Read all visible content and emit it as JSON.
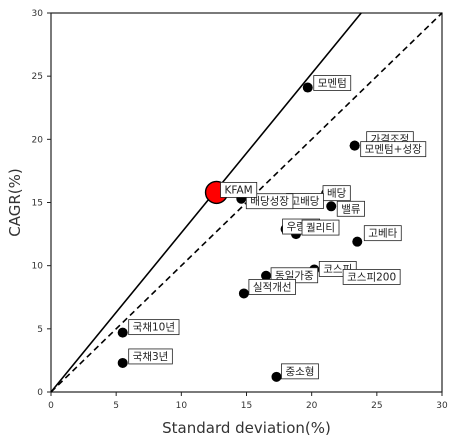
{
  "chart_data": {
    "type": "scatter",
    "title": "",
    "xlabel": "Standard deviation(%)",
    "ylabel": "CAGR(%)",
    "xlim": [
      0,
      30
    ],
    "ylim": [
      0,
      30
    ],
    "xticks": [
      0,
      5,
      10,
      15,
      20,
      25,
      30
    ],
    "yticks": [
      0,
      5,
      10,
      15,
      20,
      25,
      30
    ],
    "grid": false,
    "lines": [
      {
        "style": "solid",
        "x": [
          0,
          23.8
        ],
        "y": [
          0,
          30
        ]
      },
      {
        "style": "dashed",
        "x": [
          0,
          30
        ],
        "y": [
          0,
          30
        ]
      }
    ],
    "points": [
      {
        "label": "KFAM",
        "x": 12.7,
        "y": 15.8,
        "color": "#ff0000",
        "highlight": true
      },
      {
        "label": "모멘텀",
        "x": 19.7,
        "y": 24.1,
        "color": "#000000"
      },
      {
        "label": "가격조정",
        "x": 23.3,
        "y": 19.5,
        "color": "#000000"
      },
      {
        "label": "모멘텀+성장",
        "x": 23.3,
        "y": 19.5,
        "color": "#000000"
      },
      {
        "label": "배당성장",
        "x": 14.6,
        "y": 15.3,
        "color": "#000000"
      },
      {
        "label": "고배당",
        "x": 17.3,
        "y": 15.0,
        "color": "#000000"
      },
      {
        "label": "배당",
        "x": 21.1,
        "y": 15.7,
        "color": "#000000"
      },
      {
        "label": "밸류",
        "x": 21.5,
        "y": 14.7,
        "color": "#000000"
      },
      {
        "label": "우량주",
        "x": 18.0,
        "y": 12.9,
        "color": "#000000"
      },
      {
        "label": "퀄리티",
        "x": 18.8,
        "y": 12.5,
        "color": "#000000"
      },
      {
        "label": "고베타",
        "x": 23.5,
        "y": 11.9,
        "color": "#000000"
      },
      {
        "label": "동일가중",
        "x": 16.5,
        "y": 9.2,
        "color": "#000000"
      },
      {
        "label": "코스피",
        "x": 20.2,
        "y": 9.7,
        "color": "#000000"
      },
      {
        "label": "코스피200",
        "x": 21.8,
        "y": 9.7,
        "color": "#000000"
      },
      {
        "label": "실적개선",
        "x": 14.8,
        "y": 7.8,
        "color": "#000000"
      },
      {
        "label": "국채10년",
        "x": 5.5,
        "y": 4.7,
        "color": "#000000"
      },
      {
        "label": "국채3년",
        "x": 5.5,
        "y": 2.3,
        "color": "#000000"
      },
      {
        "label": "중소형",
        "x": 17.3,
        "y": 1.2,
        "color": "#000000"
      }
    ]
  }
}
